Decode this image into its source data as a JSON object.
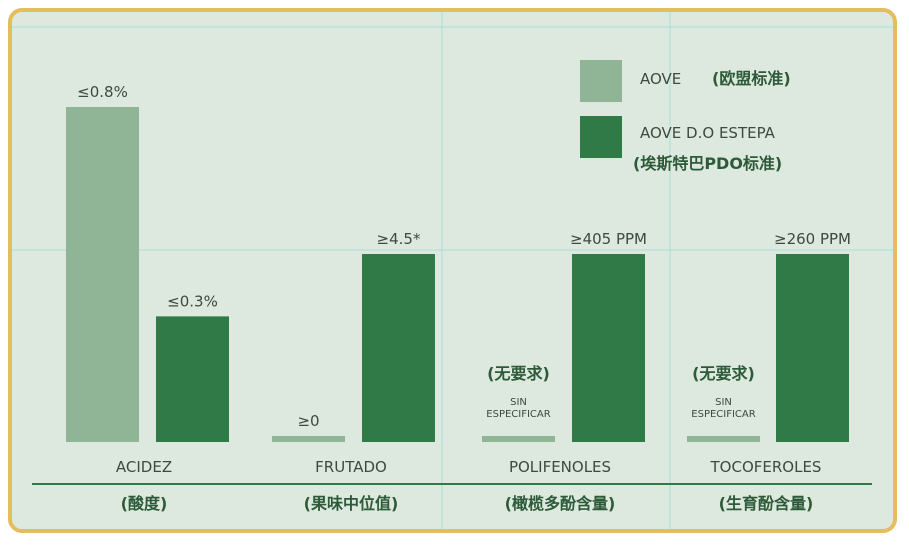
{
  "colors": {
    "light": "#8fb596",
    "dark": "#2f7a47",
    "background": "#dde9de",
    "border": "#e6bd5b",
    "text": "#3c4a40",
    "cn_text": "#2d5a39",
    "guide": "#8cd6d2"
  },
  "chart_data": {
    "type": "bar",
    "categories": [
      "ACIDEZ",
      "FRUTADO",
      "POLIFENOLES",
      "TOCOFEROLES"
    ],
    "categories_cn": [
      "(酸度)",
      "(果味中位值)",
      "(橄榄多酚含量)",
      "(生育酚含量)"
    ],
    "series": [
      {
        "name": "AOVE",
        "name_cn": "(欧盟标准)",
        "values": [
          0.8,
          0,
          null,
          null
        ],
        "labels": [
          "≤0.8%",
          "≥0",
          "SIN ESPECIFICAR",
          "SIN ESPECIFICAR"
        ],
        "labels_cn": [
          "",
          "",
          "(无要求)",
          "(无要求)"
        ]
      },
      {
        "name": "AOVE D.O ESTEPA",
        "name_cn": "(埃斯特巴PDO标准)",
        "values": [
          0.3,
          4.5,
          405,
          260
        ],
        "labels": [
          "≤0.3%",
          "≥4.5*",
          "≥405 PPM",
          "≥260 PPM"
        ]
      }
    ],
    "legend_position": "top-right"
  }
}
